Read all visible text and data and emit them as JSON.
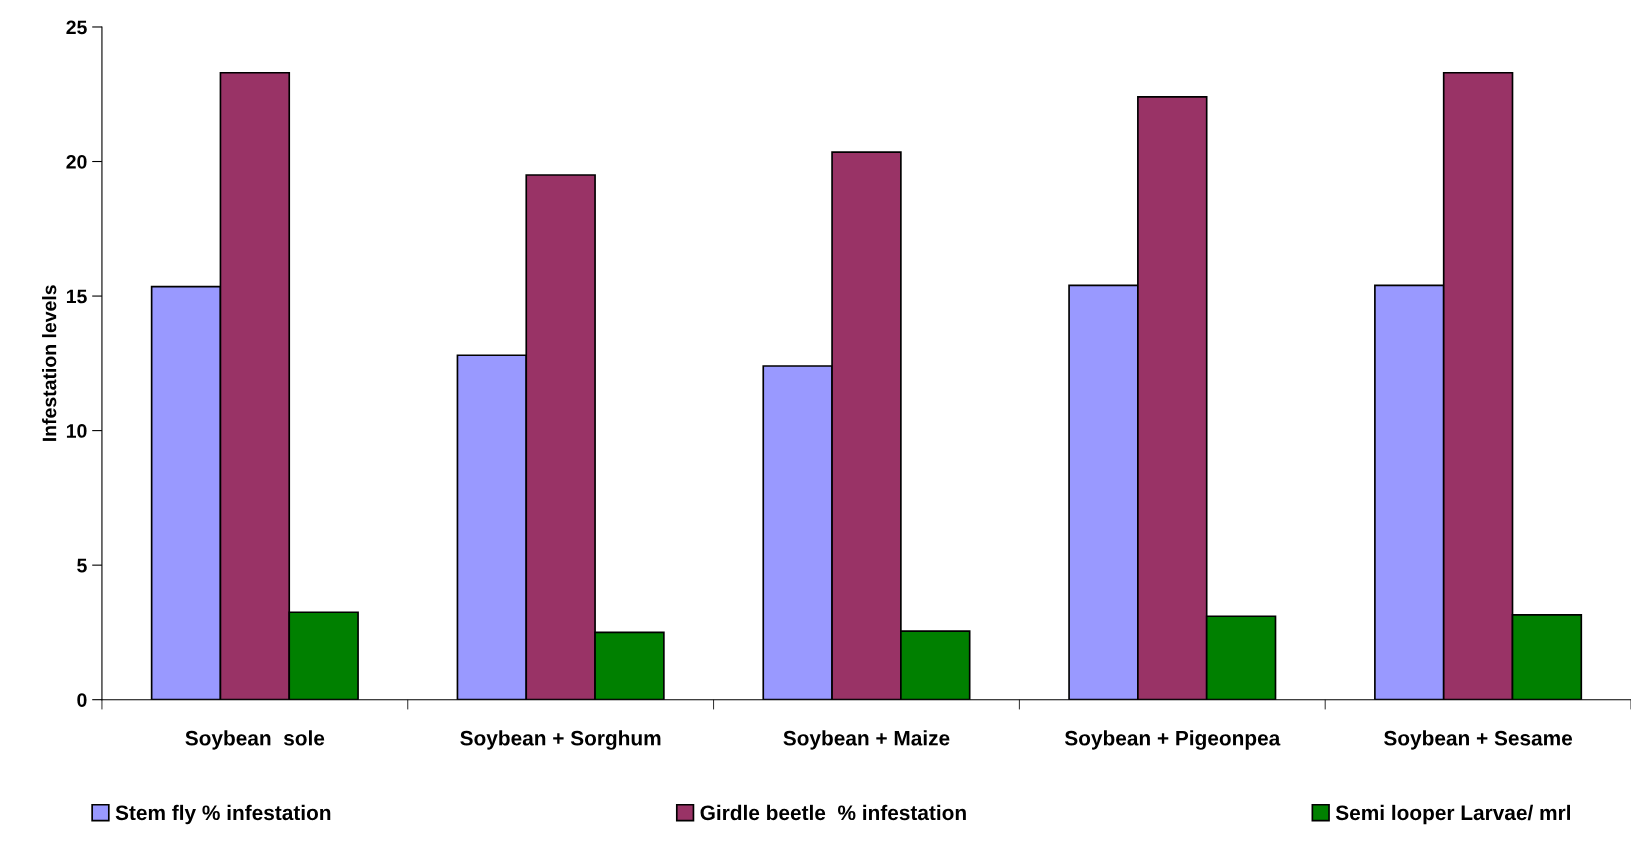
{
  "chart_data": {
    "type": "bar",
    "ylabel": "Infestation levels",
    "categories": [
      "Soybean  sole",
      "Soybean + Sorghum",
      "Soybean + Maize",
      "Soybean + Pigeonpea",
      "Soybean + Sesame"
    ],
    "series": [
      {
        "name": "Stem fly % infestation",
        "color": "#9999ff",
        "values": [
          15.35,
          12.8,
          12.4,
          15.4,
          15.4
        ]
      },
      {
        "name": "Girdle beetle  % infestation",
        "color": "#993366",
        "values": [
          23.3,
          19.5,
          20.35,
          22.4,
          23.3
        ]
      },
      {
        "name": "Semi looper Larvae/ mrl",
        "color": "#008000",
        "values": [
          3.25,
          2.5,
          2.55,
          3.1,
          3.15
        ]
      }
    ],
    "ylim": [
      0,
      25
    ],
    "yticks": [
      0,
      5,
      10,
      15,
      20,
      25
    ],
    "grid": false,
    "legend": "bottom"
  }
}
